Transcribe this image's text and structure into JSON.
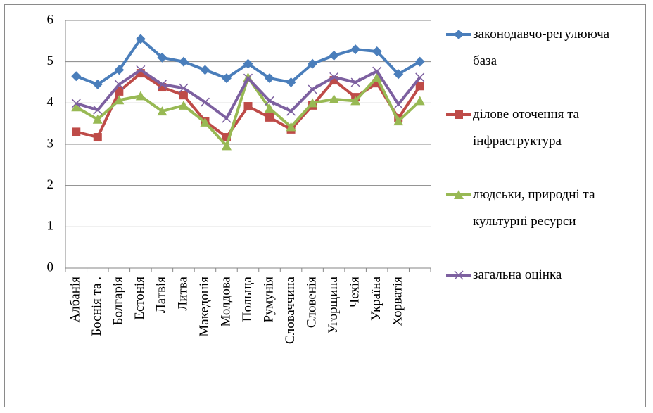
{
  "chart_data": {
    "type": "line",
    "categories": [
      "Албанія",
      "Боснія та .",
      "Болгарія",
      "Естонія",
      "Латвія",
      "Литва",
      "Македонія",
      "Молдова",
      "Польща",
      "Румунія",
      "Словаччина",
      "Словенія",
      "Угорщина",
      "Чехія",
      "Україна",
      "Хорватія",
      null
    ],
    "ylim": [
      0,
      6
    ],
    "yticks": [
      0,
      1,
      2,
      3,
      4,
      5,
      6
    ],
    "grid": true,
    "series": [
      {
        "name": "законодавчо-регулююча база",
        "color": "#4a7ebb",
        "marker": "diamond",
        "values": [
          4.65,
          4.45,
          4.8,
          5.55,
          5.1,
          5.0,
          4.8,
          4.6,
          4.95,
          4.6,
          4.5,
          4.95,
          5.15,
          5.3,
          5.25,
          4.7,
          5.0
        ]
      },
      {
        "name": "ділове оточення та інфраструктура",
        "color": "#be4b48",
        "marker": "square",
        "values": [
          3.3,
          3.17,
          4.28,
          4.72,
          4.38,
          4.19,
          3.56,
          3.17,
          3.92,
          3.65,
          3.36,
          3.94,
          4.55,
          4.14,
          4.48,
          3.63,
          4.41
        ]
      },
      {
        "name": "людськи, природні та культурні ресурси",
        "color": "#98b954",
        "marker": "triangle",
        "values": [
          3.9,
          3.6,
          4.07,
          4.17,
          3.8,
          3.94,
          3.53,
          2.96,
          4.62,
          3.87,
          3.42,
          4.0,
          4.09,
          4.05,
          4.62,
          3.56,
          4.05
        ]
      },
      {
        "name": "загальна оцінка",
        "color": "#7d60a0",
        "marker": "x",
        "values": [
          3.99,
          3.83,
          4.45,
          4.8,
          4.45,
          4.36,
          4.02,
          3.63,
          4.6,
          4.05,
          3.8,
          4.33,
          4.63,
          4.5,
          4.77,
          3.97,
          4.62
        ]
      }
    ]
  }
}
